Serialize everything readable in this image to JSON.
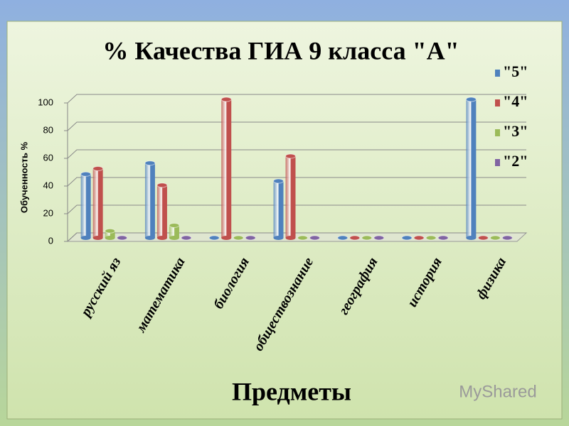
{
  "chart_data": {
    "type": "bar3d",
    "title": "% Качества ГИА 9 класса \"А\"",
    "y_label": "Обученность %",
    "x_label": "Предметы",
    "watermark": "MyShared",
    "categories": [
      "русский яз",
      "математика",
      "биология",
      "обществознание",
      "география",
      "история",
      "физика"
    ],
    "series": [
      {
        "name": "\"5\"",
        "color": "#4f81bd",
        "values": [
          46,
          54,
          0,
          41,
          0,
          0,
          100
        ]
      },
      {
        "name": "\"4\"",
        "color": "#c0504d",
        "values": [
          50,
          38,
          100,
          59,
          0,
          0,
          0
        ]
      },
      {
        "name": "\"3\"",
        "color": "#9bbb59",
        "values": [
          5,
          9,
          0,
          0,
          0,
          0,
          0
        ]
      },
      {
        "name": "\"2\"",
        "color": "#8064a2",
        "values": [
          0,
          0,
          0,
          0,
          0,
          0,
          0
        ]
      }
    ],
    "ylim": [
      0,
      100
    ],
    "yticks": [
      0,
      20,
      40,
      60,
      80,
      100
    ],
    "grid": true,
    "legend": "right"
  }
}
